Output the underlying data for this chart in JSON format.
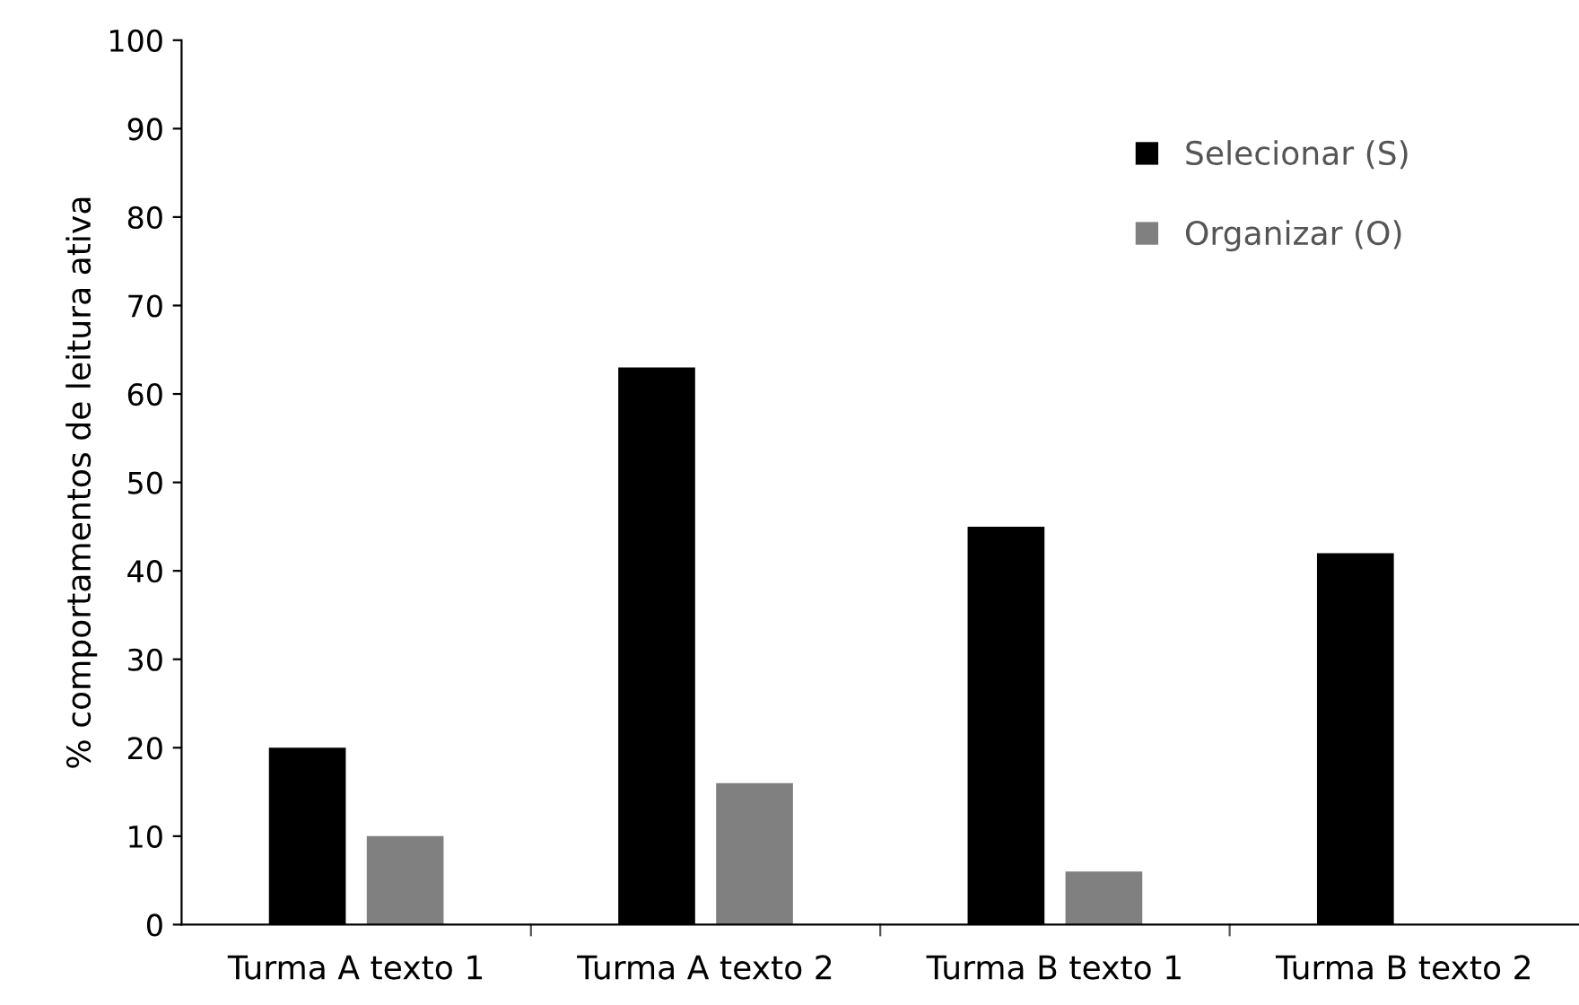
{
  "chart_data": {
    "type": "bar",
    "ylabel": "% comportamentos de leitura ativa",
    "categories": [
      "Turma A texto 1",
      "Turma A texto 2",
      "Turma B texto 1",
      "Turma B texto 2"
    ],
    "series": [
      {
        "name": "Selecionar (S)",
        "color": "#000000",
        "values": [
          20,
          63,
          45,
          42
        ]
      },
      {
        "name": "Organizar (O)",
        "color": "#808080",
        "values": [
          10,
          16,
          6,
          0
        ]
      }
    ],
    "ylim": [
      0,
      100
    ],
    "yticks": [
      0,
      10,
      20,
      30,
      40,
      50,
      60,
      70,
      80,
      90,
      100
    ],
    "grid": false,
    "legend": "top right"
  }
}
